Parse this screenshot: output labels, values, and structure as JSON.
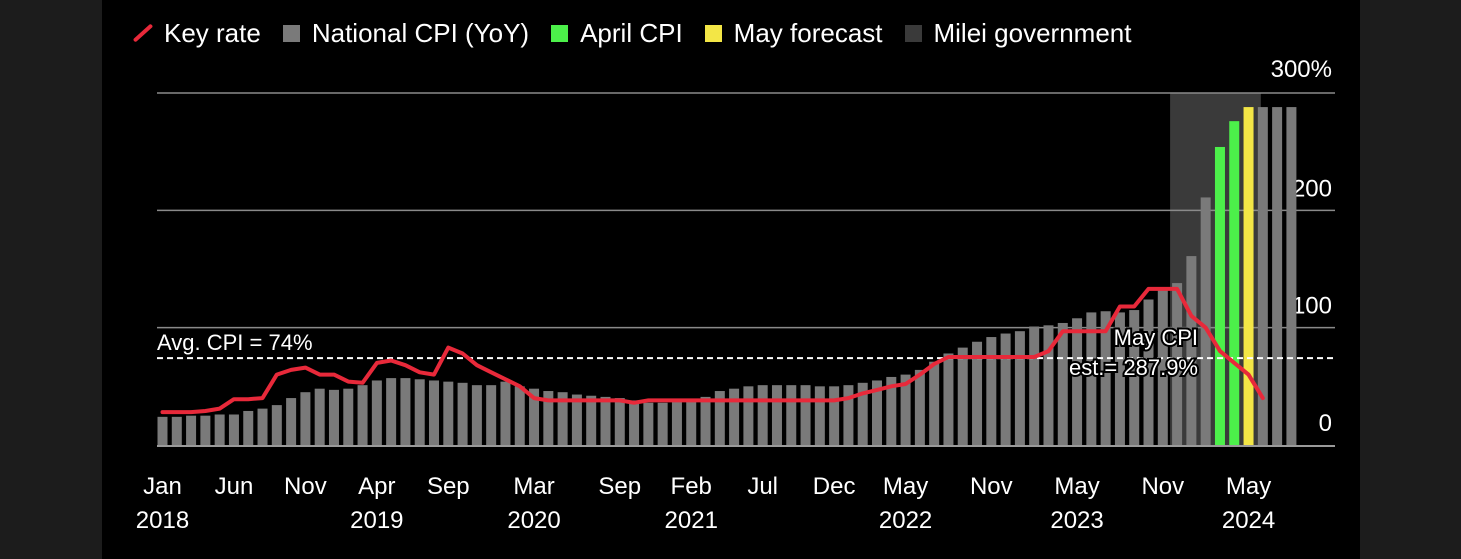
{
  "legend": {
    "items": [
      {
        "label": "Key rate",
        "kind": "line",
        "color": "#e8293a"
      },
      {
        "label": "National CPI (YoY)",
        "kind": "swatch",
        "color": "#7a7a7a"
      },
      {
        "label": "April CPI",
        "kind": "swatch",
        "color": "#4cf04a"
      },
      {
        "label": "May forecast",
        "kind": "swatch",
        "color": "#f3e646"
      },
      {
        "label": "Milei government",
        "kind": "swatch",
        "color": "#3a3a3a"
      }
    ]
  },
  "chart_data": {
    "type": "bar",
    "title": "",
    "xlabel": "",
    "ylabel": "",
    "ylim": [
      0,
      300
    ],
    "y_ticks": [
      {
        "value": 300,
        "label": "300%"
      },
      {
        "value": 200,
        "label": "200"
      },
      {
        "value": 100,
        "label": "100"
      },
      {
        "value": 0,
        "label": "0"
      }
    ],
    "x_ticks": [
      {
        "index": 0,
        "month": "Jan",
        "year": "2018"
      },
      {
        "index": 5,
        "month": "Jun",
        "year": ""
      },
      {
        "index": 10,
        "month": "Nov",
        "year": ""
      },
      {
        "index": 15,
        "month": "Apr",
        "year": "2019"
      },
      {
        "index": 20,
        "month": "Sep",
        "year": ""
      },
      {
        "index": 26,
        "month": "Mar",
        "year": "2020"
      },
      {
        "index": 32,
        "month": "Sep",
        "year": ""
      },
      {
        "index": 37,
        "month": "Feb",
        "year": "2021"
      },
      {
        "index": 42,
        "month": "Jul",
        "year": ""
      },
      {
        "index": 47,
        "month": "Dec",
        "year": ""
      },
      {
        "index": 52,
        "month": "May",
        "year": "2022"
      },
      {
        "index": 58,
        "month": "Nov",
        "year": ""
      },
      {
        "index": 64,
        "month": "May",
        "year": "2023"
      },
      {
        "index": 70,
        "month": "Nov",
        "year": ""
      },
      {
        "index": 76,
        "month": "May",
        "year": "2024"
      }
    ],
    "start_month": "2018-01",
    "cpi_values": [
      24,
      24,
      25,
      25,
      26,
      26,
      29,
      31,
      34,
      40,
      45,
      48,
      47,
      48,
      51,
      55,
      57,
      57,
      56,
      55,
      54,
      53,
      51,
      51,
      54,
      50,
      48,
      46,
      45,
      43,
      42,
      41,
      40,
      38,
      36,
      36,
      37,
      38,
      41,
      46,
      48,
      50,
      51,
      51,
      51,
      51,
      50,
      50,
      51,
      53,
      55,
      58,
      60,
      64,
      71,
      78,
      83,
      88,
      92,
      95,
      97,
      101,
      102,
      104,
      108,
      113,
      114,
      113,
      115,
      124,
      133,
      138,
      161,
      211,
      254,
      276,
      288,
      288,
      288,
      288
    ],
    "series": [
      {
        "name": "National CPI (YoY)",
        "color": "#7a7a7a"
      },
      {
        "name": "April CPI",
        "color": "#4cf04a",
        "index": 75
      },
      {
        "name": "May forecast",
        "color": "#f3e646",
        "index": 76
      }
    ],
    "highlight_colors": {
      "74": "#4cf04a",
      "75": "#4cf04a",
      "76": "#f3e646"
    },
    "key_rate": [
      [
        0,
        28
      ],
      [
        1,
        28
      ],
      [
        2,
        28
      ],
      [
        3,
        29
      ],
      [
        4,
        31
      ],
      [
        5,
        39
      ],
      [
        6,
        39
      ],
      [
        7,
        40
      ],
      [
        8,
        60
      ],
      [
        9,
        64
      ],
      [
        10,
        66
      ],
      [
        11,
        60
      ],
      [
        12,
        60
      ],
      [
        13,
        54
      ],
      [
        14,
        53
      ],
      [
        15,
        70
      ],
      [
        16,
        72
      ],
      [
        17,
        68
      ],
      [
        18,
        62
      ],
      [
        19,
        60
      ],
      [
        20,
        83
      ],
      [
        21,
        78
      ],
      [
        22,
        68
      ],
      [
        23,
        62
      ],
      [
        24,
        56
      ],
      [
        25,
        50
      ],
      [
        26,
        40
      ],
      [
        27,
        38
      ],
      [
        28,
        38
      ],
      [
        29,
        38
      ],
      [
        30,
        38
      ],
      [
        31,
        38
      ],
      [
        32,
        38
      ],
      [
        33,
        36
      ],
      [
        34,
        38
      ],
      [
        35,
        38
      ],
      [
        36,
        38
      ],
      [
        37,
        38
      ],
      [
        38,
        38
      ],
      [
        39,
        38
      ],
      [
        40,
        38
      ],
      [
        41,
        38
      ],
      [
        42,
        38
      ],
      [
        43,
        38
      ],
      [
        44,
        38
      ],
      [
        45,
        38
      ],
      [
        46,
        38
      ],
      [
        47,
        38
      ],
      [
        48,
        40
      ],
      [
        49,
        44
      ],
      [
        50,
        47
      ],
      [
        51,
        50
      ],
      [
        52,
        52
      ],
      [
        53,
        60
      ],
      [
        54,
        69
      ],
      [
        55,
        75
      ],
      [
        56,
        75
      ],
      [
        57,
        75
      ],
      [
        58,
        75
      ],
      [
        59,
        75
      ],
      [
        60,
        75
      ],
      [
        61,
        75
      ],
      [
        62,
        80
      ],
      [
        63,
        97
      ],
      [
        64,
        97
      ],
      [
        65,
        97
      ],
      [
        66,
        97
      ],
      [
        67,
        118
      ],
      [
        68,
        118
      ],
      [
        69,
        133
      ],
      [
        70,
        133
      ],
      [
        71,
        133
      ],
      [
        72,
        110
      ],
      [
        73,
        100
      ],
      [
        74,
        80
      ],
      [
        75,
        70
      ],
      [
        76,
        60
      ],
      [
        77,
        40
      ]
    ],
    "avg_line": {
      "value": 74,
      "label": "Avg. CPI = 74%"
    },
    "milei_shade": {
      "start_index": 71,
      "end_index": 77,
      "label": "Milei government"
    },
    "annotation": {
      "line1": "May CPI",
      "line2": "est.= 287.9%"
    }
  }
}
